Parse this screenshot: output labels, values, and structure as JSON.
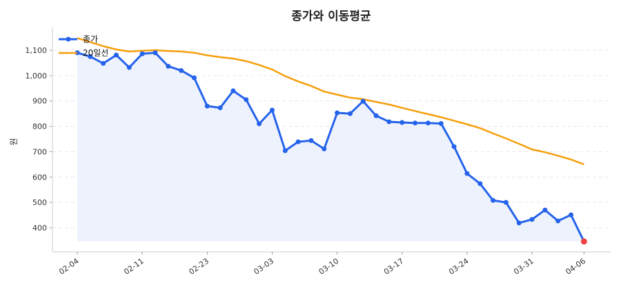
{
  "chart_data": {
    "type": "line",
    "title": "종가와 이동평균",
    "xlabel": "",
    "ylabel": "원",
    "ylim": [
      310,
      1180
    ],
    "yticks": [
      400,
      500,
      600,
      700,
      800,
      900,
      1000,
      1100
    ],
    "ytick_labels": [
      "400",
      "500",
      "600",
      "700",
      "800",
      "900",
      "1,000",
      "1,100"
    ],
    "xtick_labels": [
      "02-04",
      "02-11",
      "02-23",
      "03-03",
      "03-10",
      "03-17",
      "03-24",
      "03-31",
      "04-06"
    ],
    "x": [
      "02-04",
      "02-05",
      "02-06",
      "02-09",
      "02-10",
      "02-11",
      "02-12",
      "02-13",
      "02-19",
      "02-20",
      "02-23",
      "02-24",
      "02-25",
      "02-26",
      "02-27",
      "03-03",
      "03-04",
      "03-05",
      "03-06",
      "03-09",
      "03-10",
      "03-11",
      "03-12",
      "03-13",
      "03-16",
      "03-17",
      "03-18",
      "03-19",
      "03-20",
      "03-23",
      "03-24",
      "03-25",
      "03-26",
      "03-27",
      "03-30",
      "03-31",
      "04-01",
      "04-02",
      "04-03",
      "04-06"
    ],
    "grid": true,
    "legend": "top-left",
    "series": [
      {
        "name": "종가",
        "color": "#2563eb",
        "marker": "circle",
        "fill": "#eef2fc",
        "values": [
          1090,
          1075,
          1048,
          1081,
          1032,
          1086,
          1090,
          1037,
          1020,
          991,
          880,
          873,
          940,
          905,
          810,
          864,
          704,
          739,
          744,
          711,
          853,
          850,
          899,
          842,
          818,
          815,
          813,
          813,
          811,
          720,
          614,
          574,
          508,
          500,
          419,
          433,
          470,
          427,
          451,
          346
        ]
      },
      {
        "name": "20일선",
        "color": "#f59e0b",
        "values": [
          1148,
          1132,
          1116,
          1103,
          1095,
          1098,
          1100,
          1097,
          1095,
          1090,
          1080,
          1073,
          1067,
          1057,
          1042,
          1024,
          998,
          977,
          959,
          937,
          925,
          913,
          907,
          896,
          886,
          873,
          860,
          848,
          836,
          822,
          808,
          793,
          772,
          752,
          731,
          709,
          698,
          684,
          669,
          650
        ]
      }
    ],
    "last_point_color": "#ef4444"
  }
}
